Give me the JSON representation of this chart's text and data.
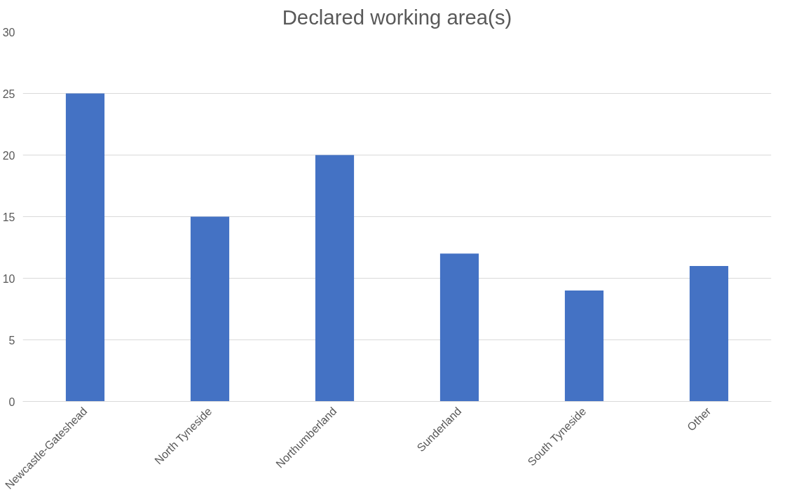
{
  "chart_data": {
    "type": "bar",
    "title": "Declared working area(s)",
    "categories": [
      "Newcastle-Gateshead",
      "North Tyneside",
      "Northumberland",
      "Sunderland",
      "South Tyneside",
      "Other"
    ],
    "values": [
      25,
      15,
      20,
      12,
      9,
      11
    ],
    "color": "#4472c4",
    "ylim": [
      0,
      30
    ],
    "yticks": [
      0,
      5,
      10,
      15,
      20,
      25,
      30
    ],
    "grid": "y"
  }
}
